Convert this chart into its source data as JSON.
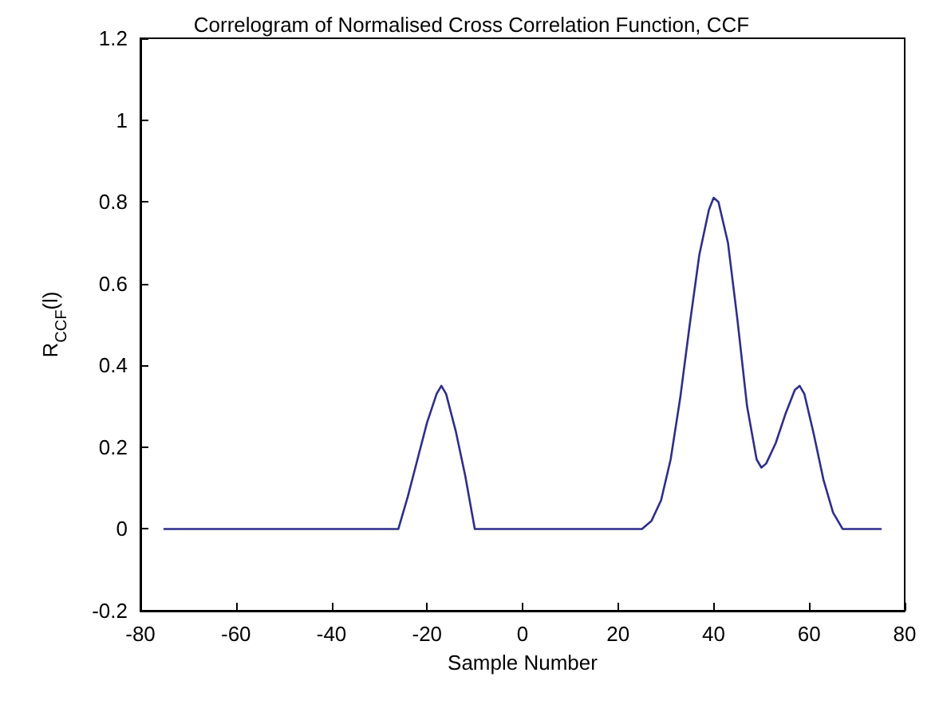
{
  "chart_data": {
    "type": "line",
    "title": "Correlogram of Normalised Cross Correlation Function, CCF",
    "xlabel": "Sample Number",
    "ylabel": "R$_{CCF}$(l)",
    "xlim": [
      -80,
      80
    ],
    "xticks": [
      -80,
      -60,
      -40,
      -20,
      0,
      20,
      40,
      60,
      80
    ],
    "ylim": [
      -0.2,
      1.2
    ],
    "yticks": [
      -0.2,
      0,
      0.2,
      0.4,
      0.6,
      0.8,
      1,
      1.2
    ],
    "grid": false,
    "marker": "none",
    "line_style": "solid",
    "series": [
      {
        "color": "#2e2e8a",
        "x": [
          -75,
          -26,
          -24,
          -22,
          -20,
          -18,
          -17,
          -16,
          -14,
          -12,
          -10,
          25,
          27,
          29,
          31,
          33,
          35,
          37,
          39,
          40,
          41,
          43,
          45,
          47,
          49,
          50,
          51,
          53,
          55,
          57,
          58,
          59,
          61,
          63,
          65,
          67,
          75
        ],
        "values": [
          0,
          0,
          0.08,
          0.17,
          0.26,
          0.33,
          0.35,
          0.33,
          0.24,
          0.13,
          0,
          0,
          0.02,
          0.07,
          0.17,
          0.32,
          0.5,
          0.67,
          0.78,
          0.81,
          0.8,
          0.7,
          0.51,
          0.3,
          0.17,
          0.15,
          0.16,
          0.21,
          0.28,
          0.34,
          0.35,
          0.33,
          0.23,
          0.12,
          0.04,
          0,
          0
        ]
      }
    ]
  }
}
